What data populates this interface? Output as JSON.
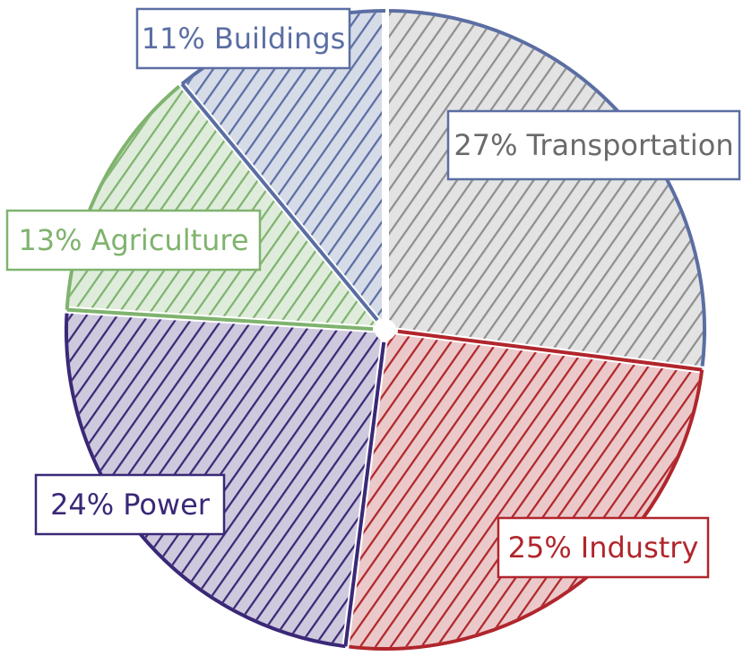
{
  "chart_data": {
    "type": "pie",
    "categories": [
      "Transportation",
      "Industry",
      "Power",
      "Agriculture",
      "Buildings"
    ],
    "values": [
      27,
      25,
      24,
      13,
      11
    ],
    "value_labels": [
      "27%",
      "25%",
      "24%",
      "13%",
      "11%"
    ],
    "colors": [
      "#5b6ea3",
      "#b0262c",
      "#3b2877",
      "#7fb36e",
      "#5b6ea3"
    ],
    "hatch_colors": [
      "#8f8f8f",
      "#b0262c",
      "#3b2877",
      "#7fb36e",
      "#5b6ea3"
    ],
    "label_colors": [
      "#6a6a6a",
      "#b0262c",
      "#3b2877",
      "#7fb36e",
      "#5b6ea3"
    ]
  }
}
